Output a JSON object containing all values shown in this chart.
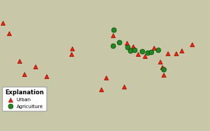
{
  "figsize": [
    3.03,
    1.89
  ],
  "dpi": 100,
  "bg_color": "#c8c8a8",
  "land_color": "#c8be8c",
  "edge_color": "#999980",
  "urban_color": "#ff2200",
  "urban_edge_color": "#880000",
  "agri_color": "#228822",
  "agri_edge_color": "#004400",
  "marker_size": 5,
  "lon_min": -125,
  "lon_max": -66,
  "lat_min": 23,
  "lat_max": 50,
  "urban_lons": [
    -122.5,
    -119.5,
    -118.2,
    -115.1,
    -112.0,
    -104.9,
    -104.7,
    -96.5,
    -95.3,
    -93.2,
    -90.1,
    -89.4,
    -87.6,
    -86.3,
    -84.4,
    -81.7,
    -80.1,
    -79.4,
    -77.9,
    -75.6,
    -74.0,
    -71.1,
    -124.2,
    -79.0
  ],
  "urban_lats": [
    45.6,
    37.8,
    34.0,
    36.2,
    33.4,
    39.7,
    41.3,
    29.7,
    33.0,
    44.9,
    30.5,
    42.9,
    41.8,
    39.8,
    39.1,
    41.4,
    37.5,
    36.0,
    40.0,
    39.9,
    40.7,
    42.4,
    48.5,
    33.9
  ],
  "agri_lons": [
    -93.1,
    -91.5,
    -93.2,
    -89.2,
    -88.3,
    -87.3,
    -85.1,
    -83.5,
    -82.5,
    -80.6,
    -79.1
  ],
  "agri_lats": [
    46.5,
    43.1,
    42.0,
    41.6,
    40.6,
    40.8,
    40.5,
    40.1,
    40.2,
    40.9,
    35.5
  ],
  "legend_title": "Explanation",
  "legend_urban": "Urban",
  "legend_agri": "Agriculture"
}
